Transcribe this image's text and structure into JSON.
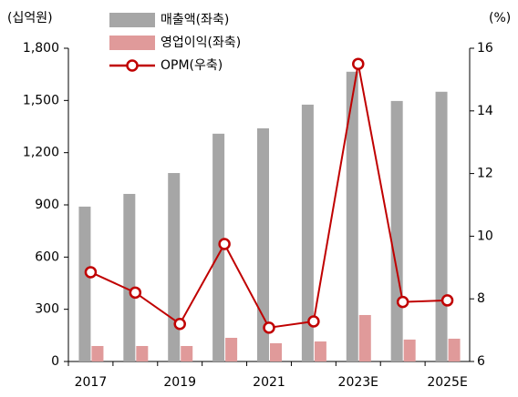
{
  "chart_data": {
    "type": "bar",
    "y_label": "(십억원)",
    "y2_label": "(%)",
    "categories": [
      "2017",
      null,
      "2019",
      null,
      "2021",
      null,
      "2023E",
      null,
      "2025E"
    ],
    "series": [
      {
        "name": "매출액(좌축)",
        "type": "bar",
        "color": "#a6a6a6",
        "values": [
          890,
          963,
          1083,
          1309,
          1340,
          1476,
          1665,
          1497,
          1550
        ]
      },
      {
        "name": "영업이익(좌축)",
        "type": "bar",
        "color": "#e09a9a",
        "values": [
          89,
          89,
          89,
          136,
          105,
          115,
          267,
          126,
          131
        ]
      },
      {
        "name": "OPM(우축)",
        "type": "line",
        "axis": "y2",
        "color": "#c00000",
        "values": [
          8.85,
          8.2,
          7.2,
          9.75,
          7.08,
          7.28,
          15.5,
          7.9,
          7.95
        ]
      }
    ],
    "ylim": [
      0,
      1800
    ],
    "yticks": [
      0,
      300,
      600,
      900,
      {
        "value": 1200,
        "label": "1,200"
      },
      {
        "value": 1500,
        "label": "1,500"
      },
      {
        "value": 1800,
        "label": "1,800"
      }
    ],
    "y2lim": [
      6,
      16
    ],
    "y2ticks": [
      6,
      8,
      10,
      12,
      14,
      16
    ],
    "grid": false
  }
}
